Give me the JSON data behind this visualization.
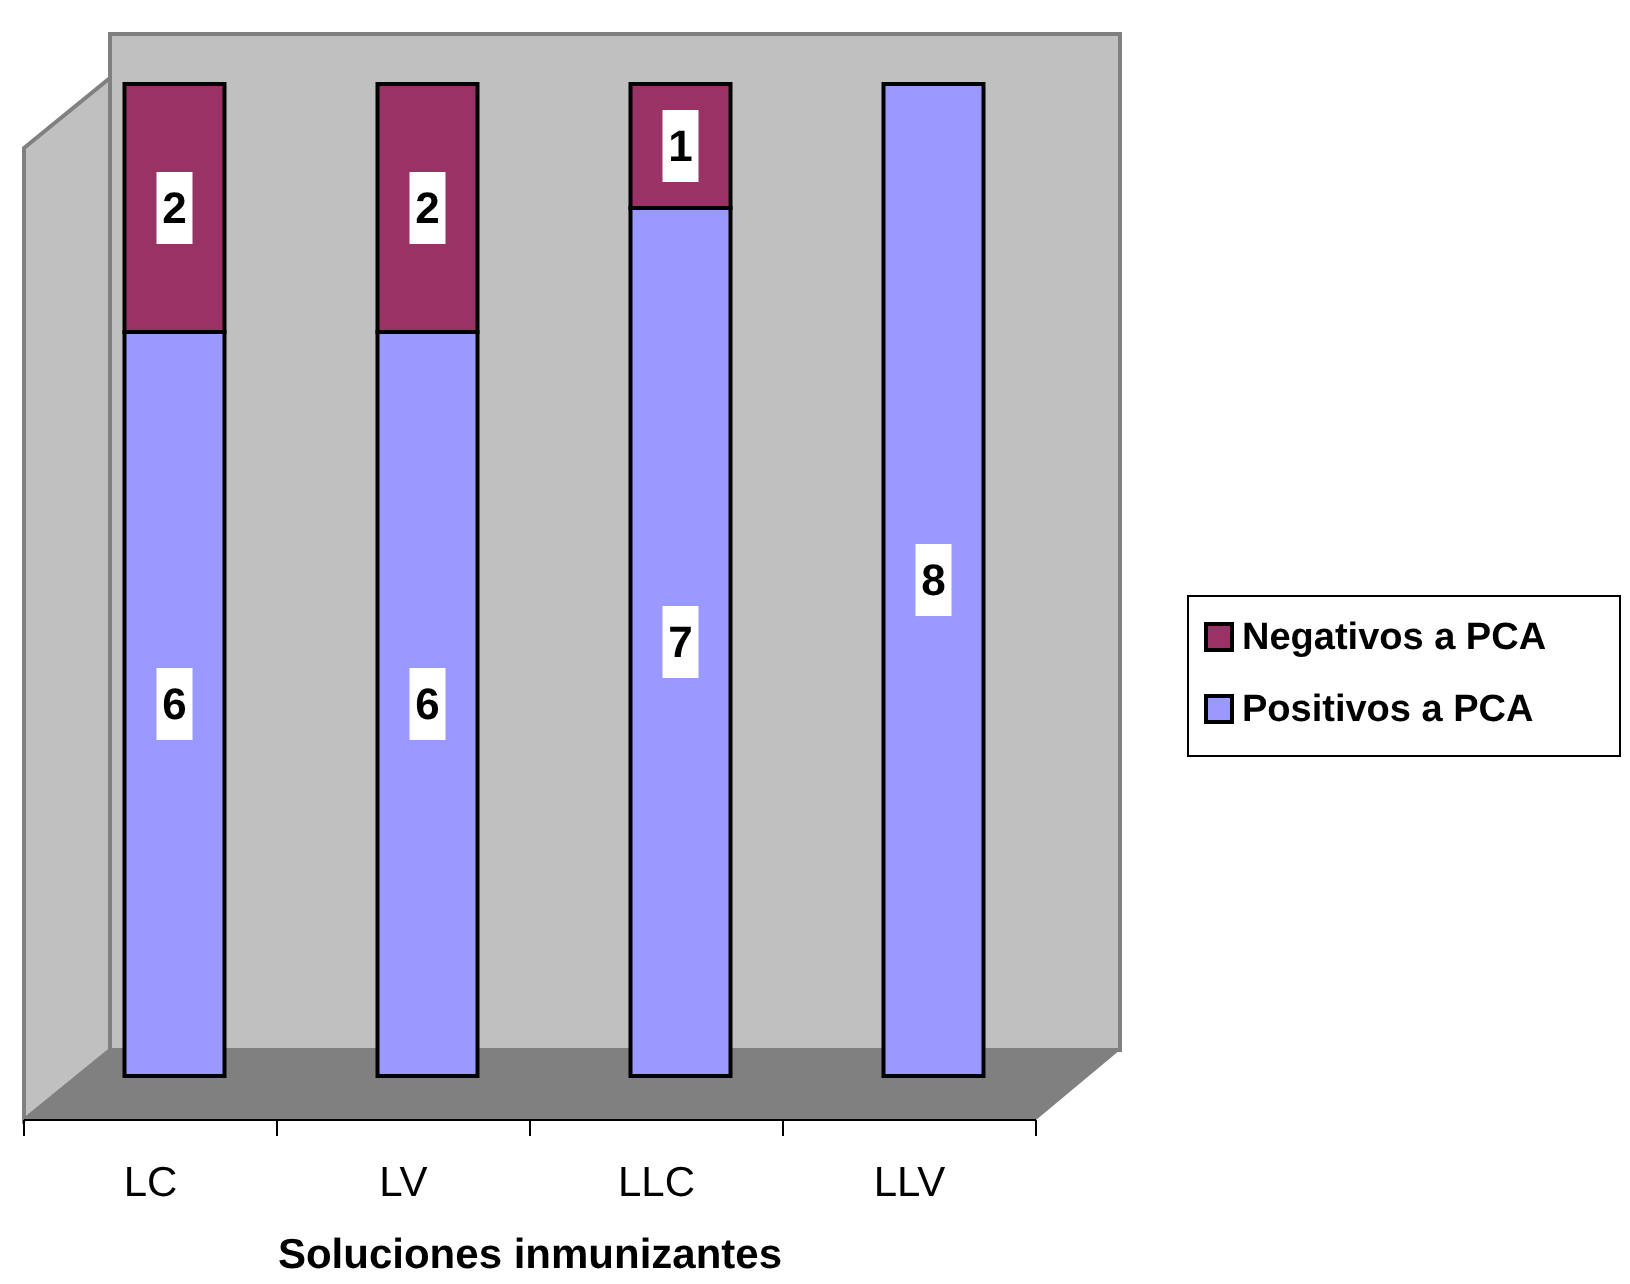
{
  "chart_data": {
    "type": "bar",
    "stacked": true,
    "xlabel": "Soluciones inmunizantes",
    "categories": [
      "LC",
      "LV",
      "LLC",
      "LLV"
    ],
    "series": [
      {
        "name": "Positivos a PCA",
        "color": "#9999ff",
        "values": [
          6,
          6,
          7,
          8
        ]
      },
      {
        "name": "Negativos a PCA",
        "color": "#993366",
        "values": [
          2,
          2,
          1,
          null
        ]
      }
    ],
    "data_labels": true,
    "legend": "right"
  }
}
